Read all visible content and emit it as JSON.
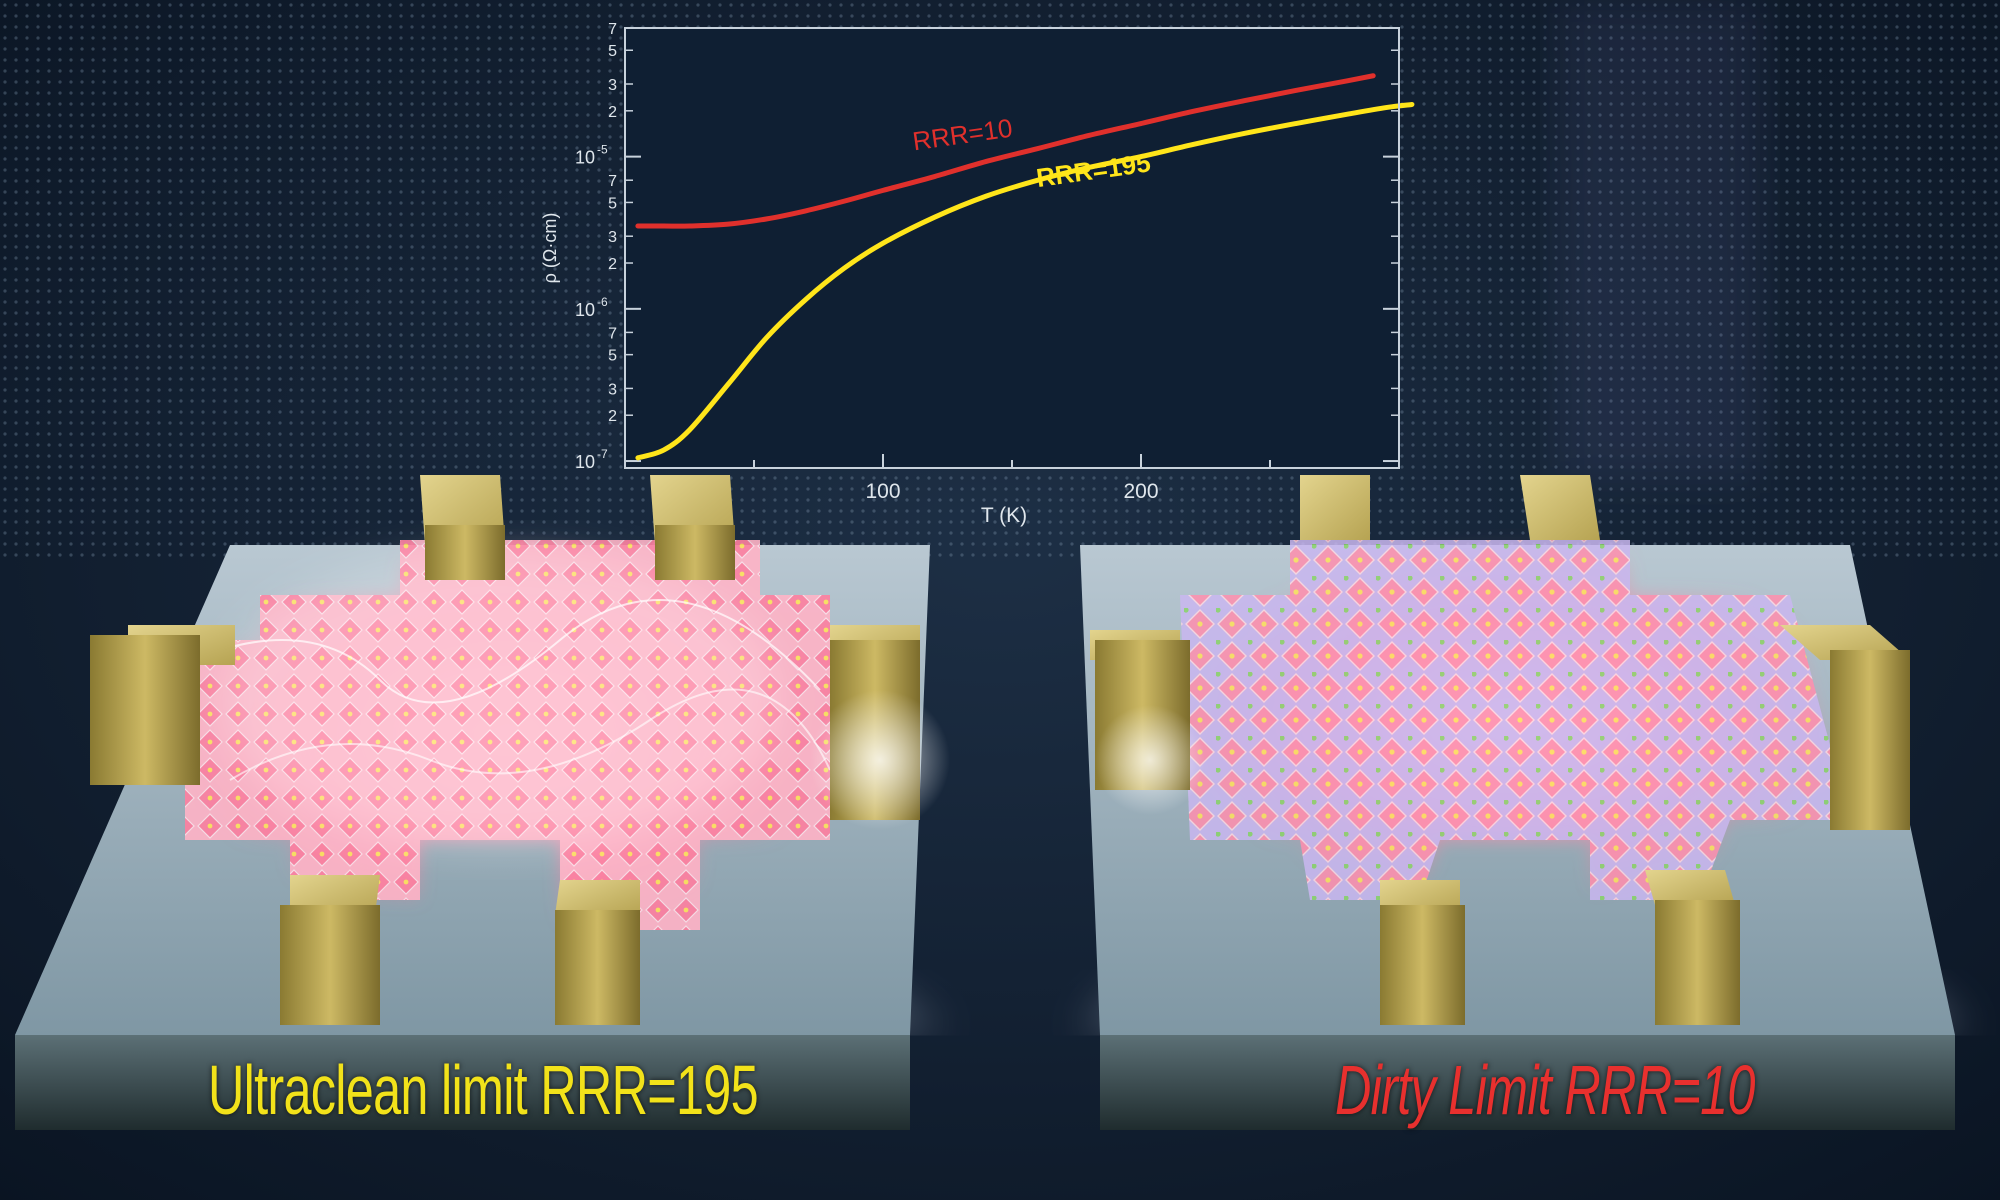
{
  "chart_data": {
    "type": "line",
    "title": "",
    "xlabel": "T (K)",
    "ylabel": "ρ (Ω·cm)",
    "xscale": "linear",
    "yscale": "log",
    "xlim": [
      0,
      300
    ],
    "ylim": [
      9e-08,
      7e-05
    ],
    "x_ticks": [
      100,
      200
    ],
    "x_tick_labels": [
      "100",
      "200"
    ],
    "y_decade_labels": [
      {
        "value": 1e-07,
        "mantissa": "10",
        "exponent": "-7"
      },
      {
        "value": 1e-06,
        "mantissa": "10",
        "exponent": "-6"
      },
      {
        "value": 1e-05,
        "mantissa": "10",
        "exponent": "-5"
      }
    ],
    "y_minor_labels": [
      {
        "value": 2e-07,
        "label": "2"
      },
      {
        "value": 3e-07,
        "label": "3"
      },
      {
        "value": 5e-07,
        "label": "5"
      },
      {
        "value": 7e-07,
        "label": "7"
      },
      {
        "value": 2e-06,
        "label": "2"
      },
      {
        "value": 3e-06,
        "label": "3"
      },
      {
        "value": 5e-06,
        "label": "5"
      },
      {
        "value": 7e-06,
        "label": "7"
      },
      {
        "value": 2e-05,
        "label": "2"
      },
      {
        "value": 3e-05,
        "label": "3"
      },
      {
        "value": 5e-05,
        "label": "5"
      },
      {
        "value": 7e-05,
        "label": "7"
      }
    ],
    "grid": false,
    "legend": "none",
    "series": [
      {
        "label": "RRR=10",
        "color": "#e0302c",
        "x": [
          5,
          15,
          25,
          40,
          55,
          70,
          85,
          100,
          120,
          140,
          160,
          180,
          200,
          220,
          240,
          260,
          280,
          290
        ],
        "y": [
          3.5e-06,
          3.5e-06,
          3.5e-06,
          3.6e-06,
          3.9e-06,
          4.4e-06,
          5.1e-06,
          6e-06,
          7.4e-06,
          9.3e-06,
          1.13e-05,
          1.38e-05,
          1.65e-05,
          1.98e-05,
          2.33e-05,
          2.72e-05,
          3.15e-05,
          3.4e-05
        ]
      },
      {
        "label": "RRR=195",
        "color": "#ffe51a",
        "x": [
          5,
          15,
          25,
          40,
          55,
          70,
          85,
          100,
          120,
          140,
          160,
          180,
          200,
          220,
          240,
          260,
          280,
          295,
          305
        ],
        "y": [
          1.05e-07,
          1.18e-07,
          1.6e-07,
          3.2e-07,
          6.5e-07,
          1.15e-06,
          1.85e-06,
          2.7e-06,
          4e-06,
          5.5e-06,
          7e-06,
          8.5e-06,
          1e-05,
          1.2e-05,
          1.42e-05,
          1.65e-05,
          1.9e-05,
          2.1e-05,
          2.2e-05
        ]
      }
    ],
    "annotations": [
      {
        "text": "RRR=10",
        "series": "RRR=10",
        "x": 112,
        "y": 1.1e-05
      },
      {
        "text": "RRR=195",
        "series": "RRR=195",
        "x": 160,
        "y": 6.3e-06
      }
    ]
  },
  "captions": {
    "left": "Ultraclean limit RRR=195",
    "right": "Dirty Limit RRR=10"
  },
  "colors": {
    "background": "#0d1a2a",
    "substrate": "#9fb2bc",
    "gold_contact": "#b7a34f",
    "lattice_pink": "#ff8aa8",
    "caption_left": "#f2e21a",
    "caption_right": "#e8302e"
  }
}
